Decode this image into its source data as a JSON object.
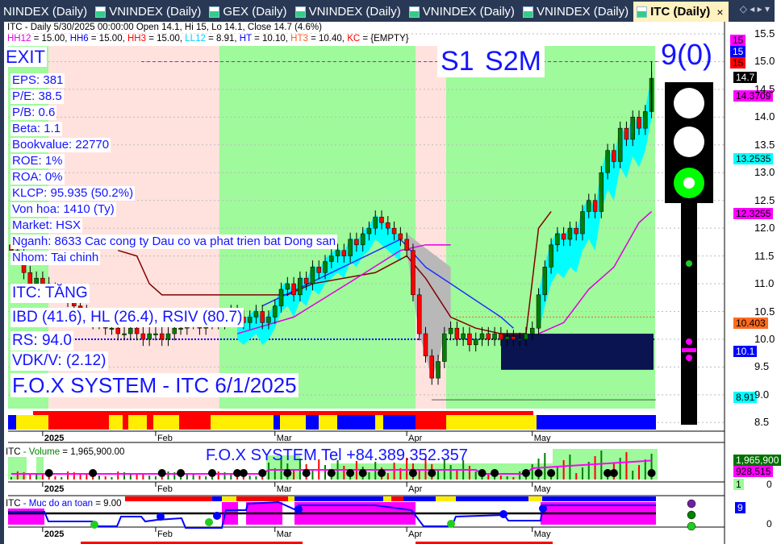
{
  "tabs": [
    {
      "label": "NINDEX (Daily)"
    },
    {
      "label": "VNINDEX (Daily)"
    },
    {
      "label": "GEX (Daily)"
    },
    {
      "label": "VNINDEX (Daily)"
    },
    {
      "label": "VNINDEX (Daily)"
    },
    {
      "label": "VNINDEX (Daily)"
    },
    {
      "label": "ITC (Daily)",
      "active": true
    }
  ],
  "tab_close": "×",
  "header": {
    "line1": "ITC - Daily 5/30/2025 00:00:00 Open 14.1, Hi 15, Lo 14.1, Close 14.7 (4.6%)",
    "indicators": [
      {
        "name": "HH12",
        "value": " = 15.00, ",
        "color": "#e000e0"
      },
      {
        "name": "HH6",
        "value": " = 15.00, ",
        "color": "#0000ff"
      },
      {
        "name": "HH3",
        "value": " = 15.00, ",
        "color": "#ff0000"
      },
      {
        "name": "LL12",
        "value": " = 8.91, ",
        "color": "#00d0ff"
      },
      {
        "name": "HT",
        "value": "  = 10.10, ",
        "color": "#0000ff"
      },
      {
        "name": "HT3",
        "value": "  = 10.40, ",
        "color": "#ff6020"
      },
      {
        "name": "KC",
        "value": " = {EMPTY}",
        "color": "#ff0000"
      }
    ]
  },
  "signal": {
    "exit": "EXIT",
    "s1s2m": "S1  S2M",
    "score": "9(0)"
  },
  "fundamentals": [
    "EPS: 381",
    "P/E: 38.5",
    "P/B: 0.6",
    "Beta: 1.1",
    "Bookvalue: 22770",
    "ROE: 1%",
    "ROA: 0%",
    "KLCP: 95.935 (50.2%)",
    "Von hoa: 1410 (Ty)",
    "Market: HSX",
    "Nganh: 8633 Cac cong ty Dau co va phat trien bat Dong san",
    "Nhom: Tai chinh"
  ],
  "status": {
    "trend": "ITC: TĂNG",
    "ratings": "IBD (41.6), HL (26.4), RSIV (80.7)",
    "rs": "RS: 94.0",
    "vdk": "VDK/V:  (2.12)",
    "brand": "F.O.X SYSTEM - ITC 6/1/2025"
  },
  "price_badges": [
    {
      "text": "15",
      "bg": "#ff00ff",
      "fg": "#000"
    },
    {
      "text": "15",
      "bg": "#0000ff",
      "fg": "#fff"
    },
    {
      "text": "15",
      "bg": "#ff0000",
      "fg": "#000"
    },
    {
      "text": "14.7",
      "bg": "#000",
      "fg": "#fff"
    },
    {
      "text": "14.3709",
      "bg": "#ff00ff",
      "fg": "#000"
    },
    {
      "text": "13.2535",
      "bg": "#00ffff",
      "fg": "#000"
    },
    {
      "text": "12.3255",
      "bg": "#ff00ff",
      "fg": "#000"
    },
    {
      "text": "10.403",
      "bg": "#ff6a20",
      "fg": "#000"
    },
    {
      "text": "10.1",
      "bg": "#0000ff",
      "fg": "#fff"
    },
    {
      "text": "8.91",
      "bg": "#00ffff",
      "fg": "#000"
    }
  ],
  "volume": {
    "title_prefix": "ITC",
    "title_name": " - Volume",
    "title_value": " = 1,965,900.00",
    "phone": "F.O.X SYSTEM Tel +84.389.352.357",
    "badge_vol": "1,965,900",
    "badge_avg": "928,515",
    "badge_sig": "1",
    "zero": "0"
  },
  "safety": {
    "title_prefix": "ITC",
    "title_name": " - Muc do an toan",
    "title_value": " = 9.00",
    "badge": "9",
    "zero": "0"
  },
  "chart_data": {
    "type": "candlestick",
    "symbol": "ITC",
    "ylim": [
      8.5,
      15.5
    ],
    "yticks": [
      "15.5",
      "15.0",
      "14.5",
      "14.0",
      "13.5",
      "13.0",
      "12.5",
      "12.0",
      "11.5",
      "11.0",
      "10.5",
      "10.0",
      "9.5",
      "9.0",
      "8.5"
    ],
    "month_labels": [
      {
        "label": "2025",
        "bar": 5
      },
      {
        "label": "Feb",
        "bar": 23
      },
      {
        "label": "Mar",
        "bar": 42
      },
      {
        "label": "Apr",
        "bar": 63
      },
      {
        "label": "May",
        "bar": 83
      }
    ],
    "close": [
      11.6,
      11.5,
      11.2,
      11.0,
      11.1,
      11.0,
      10.9,
      10.8,
      10.8,
      10.7,
      10.6,
      10.5,
      10.4,
      10.3,
      10.3,
      10.2,
      10.2,
      10.1,
      10.1,
      10.2,
      10.1,
      10.0,
      10.1,
      10.1,
      10.0,
      10.1,
      10.2,
      10.2,
      10.3,
      10.3,
      10.2,
      10.3,
      10.4,
      10.3,
      10.4,
      10.5,
      10.4,
      10.3,
      10.4,
      10.5,
      10.3,
      10.4,
      10.6,
      10.9,
      11.0,
      10.8,
      11.1,
      11.0,
      11.3,
      11.2,
      11.4,
      11.5,
      11.6,
      11.5,
      11.8,
      11.7,
      11.9,
      12.0,
      12.2,
      12.1,
      12.0,
      11.9,
      11.8,
      11.6,
      10.8,
      10.1,
      9.7,
      9.3,
      9.6,
      10.1,
      10.2,
      10.0,
      10.1,
      9.9,
      10.0,
      10.1,
      10.0,
      10.1,
      10.0,
      10.05,
      10.0,
      10.0,
      10.1,
      10.2,
      10.8,
      11.3,
      11.7,
      11.9,
      11.8,
      12.0,
      11.9,
      12.3,
      12.5,
      12.3,
      13.0,
      13.4,
      13.2,
      13.8,
      13.6,
      14.0,
      13.8,
      14.1,
      14.7
    ],
    "last": {
      "open": 14.1,
      "high": 15,
      "low": 14.1,
      "close": 14.7,
      "change_pct": 4.6
    },
    "levels": {
      "HH12": 15.0,
      "HH6": 15.0,
      "HH3": 15.0,
      "LL12": 8.91,
      "HT": 10.1,
      "HT3": 10.4
    }
  },
  "colors": {
    "bull": "#008000",
    "bear": "#ff0000",
    "zone_green": "#9efa9a",
    "zone_pink": "#ffe2de",
    "text_blue": "#1414ff"
  }
}
